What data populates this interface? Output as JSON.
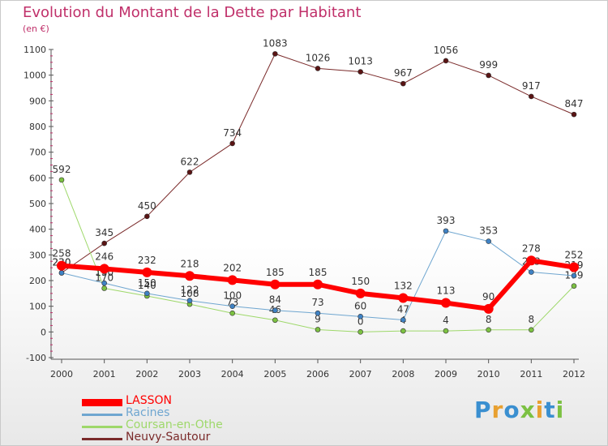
{
  "title": "Evolution du Montant de la Dette par Habitant",
  "subtitle": "(en €)",
  "logo": {
    "text": "Proxiti",
    "letter_colors": [
      "#3a8fd0",
      "#e8a030",
      "#3a8fd0",
      "#7cc142",
      "#e8a030",
      "#3a8fd0",
      "#7cc142"
    ]
  },
  "chart_data": {
    "type": "line",
    "x": [
      "2000",
      "2001",
      "2002",
      "2003",
      "2004",
      "2005",
      "2006",
      "2007",
      "2008",
      "2009",
      "2010",
      "2011",
      "2012"
    ],
    "ylim": [
      -100,
      1100
    ],
    "yticks": [
      -100,
      0,
      100,
      200,
      300,
      400,
      500,
      600,
      700,
      800,
      900,
      1000,
      1100
    ],
    "grid": false,
    "legend_position": "bottom-left",
    "series": [
      {
        "name": "Neuvy-Sautour",
        "color": "#7a2a2a",
        "marker": "#5a1414",
        "width": 1,
        "values": [
          230,
          345,
          450,
          622,
          734,
          1083,
          1026,
          1013,
          967,
          1056,
          999,
          917,
          847
        ],
        "labels": [
          "230",
          "345",
          "450",
          "622",
          "734",
          "1083",
          "1026",
          "1013",
          "967",
          "1056",
          "999",
          "917",
          "847"
        ]
      },
      {
        "name": "Coursan-en-Othe",
        "color": "#9ed86a",
        "marker": "#7cc142",
        "width": 1,
        "values": [
          592,
          170,
          140,
          108,
          73,
          46,
          9,
          0,
          4,
          4,
          8,
          8,
          179
        ],
        "labels": [
          "592",
          "170",
          "140",
          "108",
          "73",
          "46",
          "9",
          "0",
          "4",
          "4",
          "8",
          "8",
          "179"
        ]
      },
      {
        "name": "Racines",
        "color": "#6fa6d0",
        "marker": "#3f82c4",
        "width": 1,
        "values": [
          230,
          190,
          150,
          122,
          100,
          84,
          73,
          60,
          47,
          393,
          353,
          233,
          219
        ],
        "labels": [
          "230",
          "190",
          "150",
          "122",
          "100",
          "84",
          "73",
          "60",
          "47",
          "393",
          "353",
          "233",
          "219"
        ]
      },
      {
        "name": "LASSON",
        "color": "#ff0000",
        "marker": "#ff0000",
        "width": 6,
        "values": [
          258,
          246,
          232,
          218,
          202,
          185,
          185,
          150,
          132,
          113,
          90,
          278,
          252
        ],
        "labels": [
          "258",
          "246",
          "232",
          "218",
          "202",
          "185",
          "185",
          "150",
          "132",
          "113",
          "90",
          "278",
          "252"
        ]
      }
    ]
  },
  "legend": [
    {
      "name": "LASSON",
      "color": "#ff0000",
      "width": 9
    },
    {
      "name": "Racines",
      "color": "#6fa6d0",
      "width": 3
    },
    {
      "name": "Coursan-en-Othe",
      "color": "#9ed86a",
      "width": 3
    },
    {
      "name": "Neuvy-Sautour",
      "color": "#7a2a2a",
      "width": 3
    }
  ]
}
